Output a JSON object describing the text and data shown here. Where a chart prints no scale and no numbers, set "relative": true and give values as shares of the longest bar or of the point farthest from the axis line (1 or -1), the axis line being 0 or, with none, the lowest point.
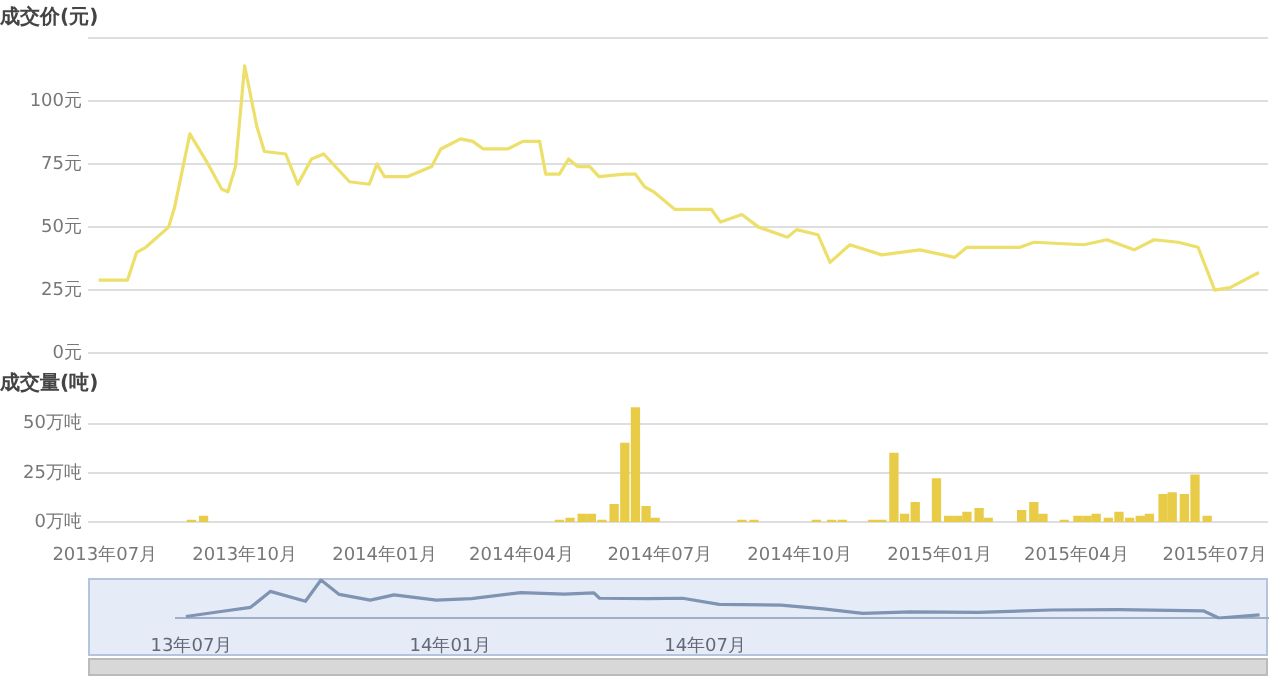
{
  "chart_data": [
    {
      "type": "line",
      "title": "成交价(元)",
      "color": "#ecdf6a",
      "grid": "y",
      "tick_labels": "y",
      "x": [
        "2013-06-27",
        "2013-07-16",
        "2013-07-22",
        "2013-07-28",
        "2013-08-12",
        "2013-08-16",
        "2013-08-26",
        "2013-09-06",
        "2013-09-16",
        "2013-09-20",
        "2013-09-25",
        "2013-10-01",
        "2013-10-09",
        "2013-10-14",
        "2013-10-28",
        "2013-11-05",
        "2013-11-14",
        "2013-11-22",
        "2013-12-09",
        "2013-12-22",
        "2013-12-27",
        "2014-01-01",
        "2014-01-16",
        "2014-02-01",
        "2014-02-07",
        "2014-02-20",
        "2014-02-28",
        "2014-03-07",
        "2014-03-23",
        "2014-04-02",
        "2014-04-13",
        "2014-04-17",
        "2014-04-26",
        "2014-05-02",
        "2014-05-08",
        "2014-05-16",
        "2014-05-22",
        "2014-06-08",
        "2014-06-15",
        "2014-06-21",
        "2014-06-27",
        "2014-07-11",
        "2014-08-04",
        "2014-08-10",
        "2014-08-24",
        "2014-09-04",
        "2014-09-23",
        "2014-09-29",
        "2014-10-13",
        "2014-10-21",
        "2014-11-03",
        "2014-11-24",
        "2014-12-19",
        "2015-01-11",
        "2015-01-19",
        "2015-02-23",
        "2015-03-04",
        "2015-04-06",
        "2015-04-21",
        "2015-05-09",
        "2015-05-22",
        "2015-06-07",
        "2015-06-20",
        "2015-07-01",
        "2015-07-11",
        "2015-07-30"
      ],
      "values": [
        29,
        29,
        40,
        42,
        50,
        58,
        87,
        76,
        65,
        64,
        74,
        114,
        90,
        80,
        79,
        67,
        77,
        79,
        68,
        67,
        75,
        70,
        70,
        74,
        81,
        85,
        84,
        81,
        81,
        84,
        84,
        71,
        71,
        77,
        74,
        74,
        70,
        71,
        71,
        66,
        64,
        57,
        57,
        52,
        55,
        50,
        46,
        49,
        47,
        36,
        43,
        39,
        41,
        38,
        42,
        42,
        44,
        43,
        45,
        41,
        45,
        44,
        42,
        25,
        26,
        32
      ],
      "xlim": [
        "2013-06-20",
        "2015-08-05"
      ],
      "ylim": [
        0,
        125
      ],
      "yticks": [
        {
          "value": 0,
          "label": "0元"
        },
        {
          "value": 25,
          "label": "25元"
        },
        {
          "value": 50,
          "label": "50元"
        },
        {
          "value": 75,
          "label": "75元"
        },
        {
          "value": 100,
          "label": "100元"
        },
        {
          "value": 125,
          "label": null
        }
      ]
    },
    {
      "type": "bar",
      "title": "成交量(吨)",
      "color": "#e8cc48",
      "grid": "y",
      "x": [
        "2013-08-27",
        "2013-09-04",
        "2014-04-26",
        "2014-05-03",
        "2014-05-11",
        "2014-05-17",
        "2014-05-24",
        "2014-06-01",
        "2014-06-08",
        "2014-06-15",
        "2014-06-22",
        "2014-06-28",
        "2014-08-24",
        "2014-09-01",
        "2014-10-12",
        "2014-10-22",
        "2014-10-29",
        "2014-11-18",
        "2014-11-24",
        "2014-12-02",
        "2014-12-09",
        "2014-12-16",
        "2014-12-30",
        "2015-01-07",
        "2015-01-13",
        "2015-01-19",
        "2015-01-27",
        "2015-02-02",
        "2015-02-24",
        "2015-03-04",
        "2015-03-10",
        "2015-03-24",
        "2015-04-02",
        "2015-04-08",
        "2015-04-14",
        "2015-04-22",
        "2015-04-29",
        "2015-05-06",
        "2015-05-13",
        "2015-05-19",
        "2015-05-28",
        "2015-06-03",
        "2015-06-11",
        "2015-06-18",
        "2015-06-26"
      ],
      "values": [
        1,
        3,
        1,
        2,
        4,
        4,
        1,
        9,
        40,
        58,
        8,
        2,
        1,
        1,
        1,
        1,
        1,
        1,
        1,
        35,
        4,
        10,
        22,
        3,
        3,
        5,
        7,
        2,
        6,
        10,
        4,
        1,
        3,
        3,
        4,
        2,
        5,
        2,
        3,
        4,
        14,
        15,
        14,
        24,
        3
      ],
      "xlim": [
        "2013-06-20",
        "2015-08-05"
      ],
      "xticks": [
        {
          "value": "2013-07-01",
          "label": "2013年07月"
        },
        {
          "value": "2013-10-01",
          "label": "2013年10月"
        },
        {
          "value": "2014-01-01",
          "label": "2014年01月"
        },
        {
          "value": "2014-04-01",
          "label": "2014年04月"
        },
        {
          "value": "2014-07-01",
          "label": "2014年07月"
        },
        {
          "value": "2014-10-01",
          "label": "2014年10月"
        },
        {
          "value": "2015-01-01",
          "label": "2015年01月"
        },
        {
          "value": "2015-04-01",
          "label": "2015年04月"
        },
        {
          "value": "2015-07-01",
          "label": "2015年07月"
        }
      ],
      "ylim": [
        0,
        60
      ],
      "yticks": [
        {
          "value": 0,
          "label": "0万吨"
        },
        {
          "value": 25,
          "label": "25万吨"
        },
        {
          "value": 50,
          "label": "50万吨"
        }
      ]
    },
    {
      "type": "line",
      "relative": true,
      "color": "#7f93b3",
      "tick_labels": "x",
      "x": [
        "2013-06-27",
        "2013-07-22",
        "2013-08-12",
        "2013-08-26",
        "2013-09-20",
        "2013-10-01",
        "2013-10-14",
        "2013-11-05",
        "2013-11-22",
        "2013-12-22",
        "2014-01-16",
        "2014-02-20",
        "2014-03-23",
        "2014-04-13",
        "2014-04-17",
        "2014-05-22",
        "2014-06-15",
        "2014-07-11",
        "2014-08-24",
        "2014-09-23",
        "2014-10-21",
        "2014-11-24",
        "2015-01-11",
        "2015-03-04",
        "2015-04-21",
        "2015-06-20",
        "2015-07-01",
        "2015-07-30"
      ],
      "values": [
        0.04,
        0.17,
        0.28,
        0.7,
        0.44,
        1,
        0.62,
        0.47,
        0.61,
        0.47,
        0.51,
        0.67,
        0.63,
        0.66,
        0.52,
        0.51,
        0.52,
        0.36,
        0.34,
        0.24,
        0.12,
        0.16,
        0.15,
        0.21,
        0.22,
        0.19,
        0,
        0.08
      ],
      "xlim": [
        "2013-06-20",
        "2015-08-05"
      ],
      "xticks": [
        {
          "value": "2013-07-01",
          "label": "13年07月"
        },
        {
          "value": "2014-01-01",
          "label": "14年01月"
        },
        {
          "value": "2014-07-01",
          "label": "14年07月"
        }
      ]
    }
  ]
}
